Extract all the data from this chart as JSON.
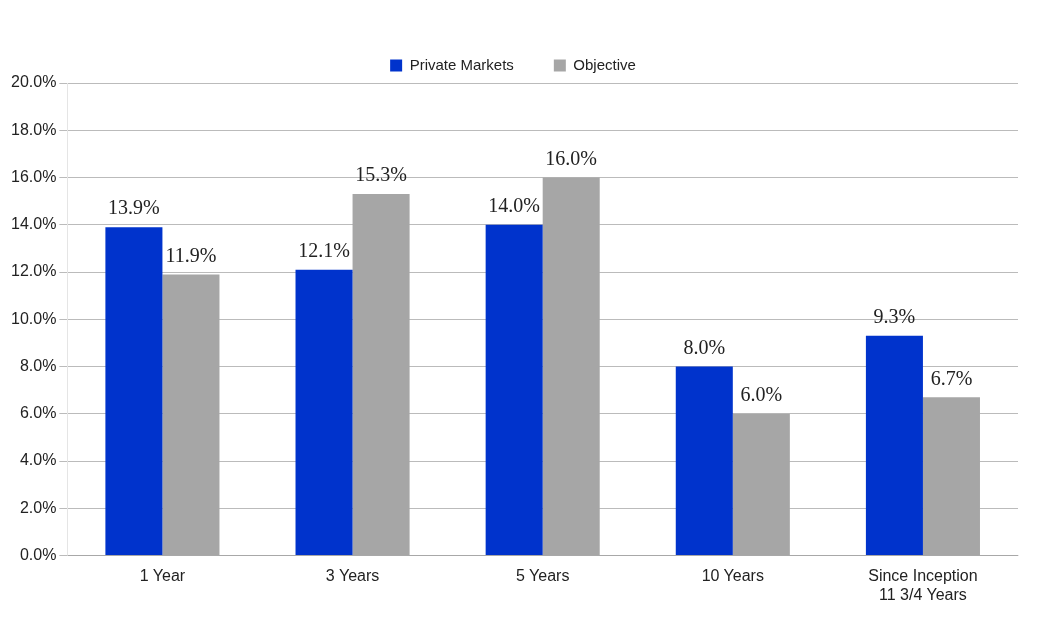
{
  "chart_data": {
    "type": "bar",
    "categories": [
      "1 Year",
      "3 Years",
      "5 Years",
      "10 Years",
      "Since Inception\n11 3/4 Years"
    ],
    "series": [
      {
        "name": "Private Markets",
        "color": "#0033cc",
        "values": [
          13.9,
          12.1,
          14.0,
          8.0,
          9.3
        ],
        "value_labels": [
          "13.9%",
          "12.1%",
          "14.0%",
          "8.0%",
          "9.3%"
        ]
      },
      {
        "name": "Objective",
        "color": "#a6a6a6",
        "values": [
          11.9,
          15.3,
          16.0,
          6.0,
          6.7
        ],
        "value_labels": [
          "11.9%",
          "15.3%",
          "16.0%",
          "6.0%",
          "6.7%"
        ]
      }
    ],
    "ylim": [
      0,
      20
    ],
    "yticks": [
      {
        "value": 0,
        "label": "0.0%"
      },
      {
        "value": 2,
        "label": "2.0%"
      },
      {
        "value": 4,
        "label": "4.0%"
      },
      {
        "value": 6,
        "label": "6.0%"
      },
      {
        "value": 8,
        "label": "8.0%"
      },
      {
        "value": 10,
        "label": "10.0%"
      },
      {
        "value": 12,
        "label": "12.0%"
      },
      {
        "value": 14,
        "label": "14.0%"
      },
      {
        "value": 16,
        "label": "16.0%"
      },
      {
        "value": 18,
        "label": "18.0%"
      },
      {
        "value": 20,
        "label": "20.0%"
      }
    ],
    "grid": "y",
    "legend": "top"
  }
}
